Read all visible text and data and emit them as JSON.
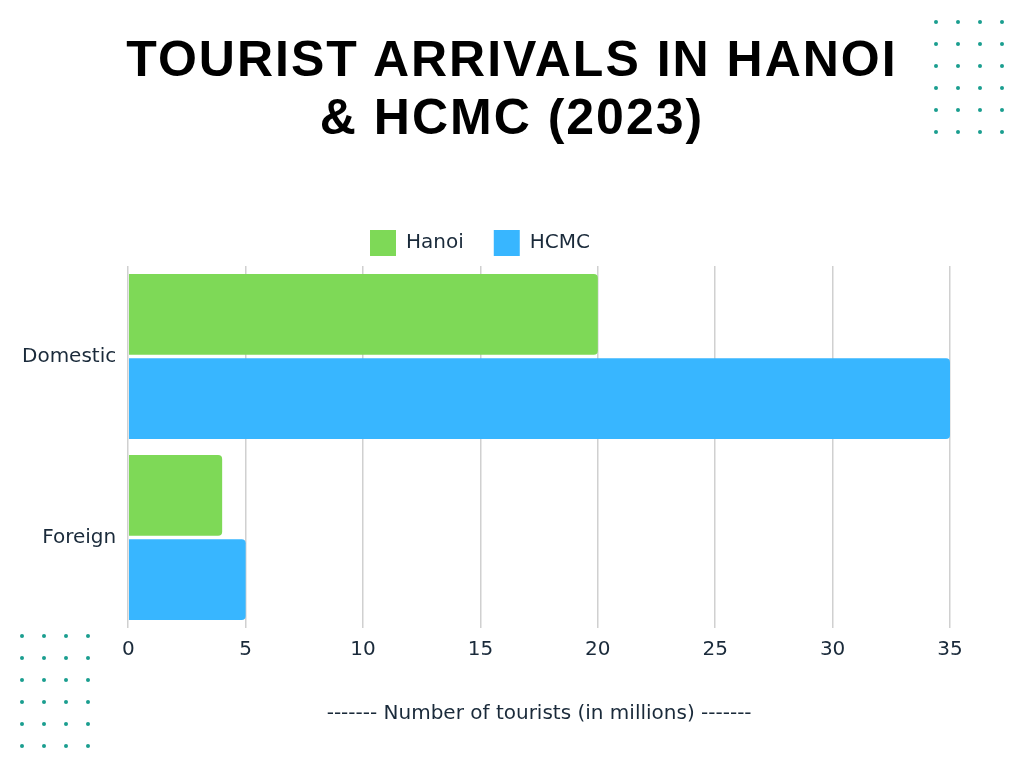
{
  "chart_data": {
    "type": "bar",
    "title": "TOURIST ARRIVALS IN HANOI & HCMC (2023)",
    "xlabel": "------- Number of tourists (in millions) -------",
    "orientation": "horizontal",
    "categories": [
      "Domestic",
      "Foreign"
    ],
    "series": [
      {
        "name": "Hanoi",
        "color": "#7ed957",
        "values": [
          20,
          4
        ]
      },
      {
        "name": "HCMC",
        "color": "#38b6ff",
        "values": [
          35,
          5
        ]
      }
    ],
    "xlim": [
      0,
      35
    ],
    "xticks": [
      0,
      5,
      10,
      15,
      20,
      25,
      30,
      35
    ],
    "grid": "x",
    "legend": "top"
  }
}
